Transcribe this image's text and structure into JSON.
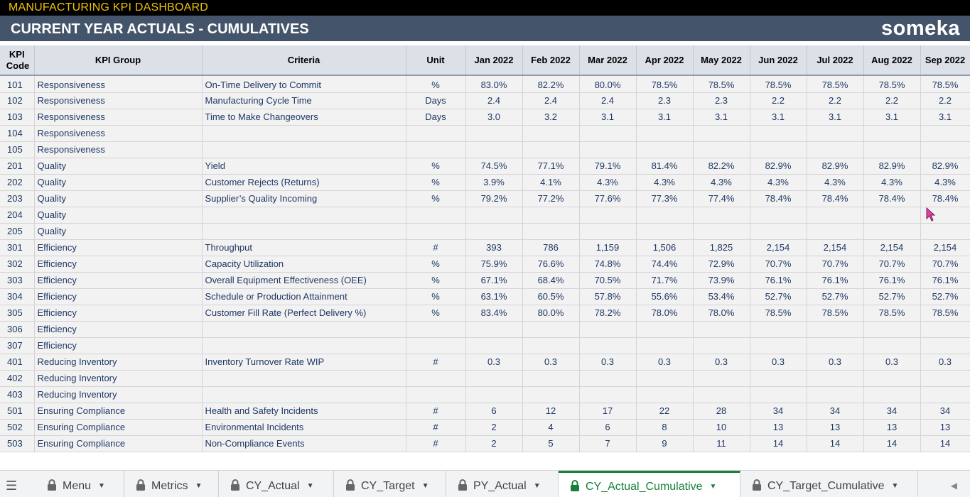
{
  "header": {
    "app_title": "MANUFACTURING KPI DASHBOARD",
    "page_title": "CURRENT YEAR ACTUALS - CUMULATIVES",
    "brand": "someka"
  },
  "table": {
    "columns": {
      "code": "KPI Code",
      "group": "KPI Group",
      "criteria": "Criteria",
      "unit": "Unit",
      "months": [
        "Jan 2022",
        "Feb 2022",
        "Mar 2022",
        "Apr 2022",
        "May 2022",
        "Jun 2022",
        "Jul 2022",
        "Aug 2022",
        "Sep 2022"
      ]
    },
    "rows": [
      {
        "code": "101",
        "group": "Responsiveness",
        "criteria": "On-Time Delivery to Commit",
        "unit": "%",
        "values": [
          "83.0%",
          "82.2%",
          "80.0%",
          "78.5%",
          "78.5%",
          "78.5%",
          "78.5%",
          "78.5%",
          "78.5%"
        ]
      },
      {
        "code": "102",
        "group": "Responsiveness",
        "criteria": "Manufacturing Cycle Time",
        "unit": "Days",
        "values": [
          "2.4",
          "2.4",
          "2.4",
          "2.3",
          "2.3",
          "2.2",
          "2.2",
          "2.2",
          "2.2"
        ]
      },
      {
        "code": "103",
        "group": "Responsiveness",
        "criteria": "Time to Make Changeovers",
        "unit": "Days",
        "values": [
          "3.0",
          "3.2",
          "3.1",
          "3.1",
          "3.1",
          "3.1",
          "3.1",
          "3.1",
          "3.1"
        ]
      },
      {
        "code": "104",
        "group": "Responsiveness",
        "criteria": "",
        "unit": "",
        "values": [
          "",
          "",
          "",
          "",
          "",
          "",
          "",
          "",
          ""
        ]
      },
      {
        "code": "105",
        "group": "Responsiveness",
        "criteria": "",
        "unit": "",
        "values": [
          "",
          "",
          "",
          "",
          "",
          "",
          "",
          "",
          ""
        ]
      },
      {
        "code": "201",
        "group": "Quality",
        "criteria": "Yield",
        "unit": "%",
        "values": [
          "74.5%",
          "77.1%",
          "79.1%",
          "81.4%",
          "82.2%",
          "82.9%",
          "82.9%",
          "82.9%",
          "82.9%"
        ]
      },
      {
        "code": "202",
        "group": "Quality",
        "criteria": "Customer Rejects (Returns)",
        "unit": "%",
        "values": [
          "3.9%",
          "4.1%",
          "4.3%",
          "4.3%",
          "4.3%",
          "4.3%",
          "4.3%",
          "4.3%",
          "4.3%"
        ]
      },
      {
        "code": "203",
        "group": "Quality",
        "criteria": "Supplier’s Quality Incoming",
        "unit": "%",
        "values": [
          "79.2%",
          "77.2%",
          "77.6%",
          "77.3%",
          "77.4%",
          "78.4%",
          "78.4%",
          "78.4%",
          "78.4%"
        ]
      },
      {
        "code": "204",
        "group": "Quality",
        "criteria": "",
        "unit": "",
        "values": [
          "",
          "",
          "",
          "",
          "",
          "",
          "",
          "",
          ""
        ]
      },
      {
        "code": "205",
        "group": "Quality",
        "criteria": "",
        "unit": "",
        "values": [
          "",
          "",
          "",
          "",
          "",
          "",
          "",
          "",
          ""
        ]
      },
      {
        "code": "301",
        "group": "Efficiency",
        "criteria": "Throughput",
        "unit": "#",
        "values": [
          "393",
          "786",
          "1,159",
          "1,506",
          "1,825",
          "2,154",
          "2,154",
          "2,154",
          "2,154"
        ]
      },
      {
        "code": "302",
        "group": "Efficiency",
        "criteria": "Capacity Utilization",
        "unit": "%",
        "values": [
          "75.9%",
          "76.6%",
          "74.8%",
          "74.4%",
          "72.9%",
          "70.7%",
          "70.7%",
          "70.7%",
          "70.7%"
        ]
      },
      {
        "code": "303",
        "group": "Efficiency",
        "criteria": "Overall Equipment Effectiveness (OEE)",
        "unit": "%",
        "values": [
          "67.1%",
          "68.4%",
          "70.5%",
          "71.7%",
          "73.9%",
          "76.1%",
          "76.1%",
          "76.1%",
          "76.1%"
        ]
      },
      {
        "code": "304",
        "group": "Efficiency",
        "criteria": "Schedule or Production Attainment",
        "unit": "%",
        "values": [
          "63.1%",
          "60.5%",
          "57.8%",
          "55.6%",
          "53.4%",
          "52.7%",
          "52.7%",
          "52.7%",
          "52.7%"
        ]
      },
      {
        "code": "305",
        "group": "Efficiency",
        "criteria": "Customer Fill Rate (Perfect Delivery %)",
        "unit": "%",
        "values": [
          "83.4%",
          "80.0%",
          "78.2%",
          "78.0%",
          "78.0%",
          "78.5%",
          "78.5%",
          "78.5%",
          "78.5%"
        ]
      },
      {
        "code": "306",
        "group": "Efficiency",
        "criteria": "",
        "unit": "",
        "values": [
          "",
          "",
          "",
          "",
          "",
          "",
          "",
          "",
          ""
        ]
      },
      {
        "code": "307",
        "group": "Efficiency",
        "criteria": "",
        "unit": "",
        "values": [
          "",
          "",
          "",
          "",
          "",
          "",
          "",
          "",
          ""
        ]
      },
      {
        "code": "401",
        "group": "Reducing Inventory",
        "criteria": "Inventory Turnover Rate WIP",
        "unit": "#",
        "values": [
          "0.3",
          "0.3",
          "0.3",
          "0.3",
          "0.3",
          "0.3",
          "0.3",
          "0.3",
          "0.3"
        ]
      },
      {
        "code": "402",
        "group": "Reducing Inventory",
        "criteria": "",
        "unit": "",
        "values": [
          "",
          "",
          "",
          "",
          "",
          "",
          "",
          "",
          ""
        ]
      },
      {
        "code": "403",
        "group": "Reducing Inventory",
        "criteria": "",
        "unit": "",
        "values": [
          "",
          "",
          "",
          "",
          "",
          "",
          "",
          "",
          ""
        ]
      },
      {
        "code": "501",
        "group": "Ensuring Compliance",
        "criteria": "Health and Safety Incidents",
        "unit": "#",
        "values": [
          "6",
          "12",
          "17",
          "22",
          "28",
          "34",
          "34",
          "34",
          "34"
        ]
      },
      {
        "code": "502",
        "group": "Ensuring Compliance",
        "criteria": "Environmental Incidents",
        "unit": "#",
        "values": [
          "2",
          "4",
          "6",
          "8",
          "10",
          "13",
          "13",
          "13",
          "13"
        ]
      },
      {
        "code": "503",
        "group": "Ensuring Compliance",
        "criteria": "Non-Compliance Events",
        "unit": "#",
        "values": [
          "2",
          "5",
          "7",
          "9",
          "11",
          "14",
          "14",
          "14",
          "14"
        ]
      }
    ]
  },
  "tabs": [
    {
      "label": "Menu",
      "locked": true,
      "active": false
    },
    {
      "label": "Metrics",
      "locked": true,
      "active": false
    },
    {
      "label": "CY_Actual",
      "locked": true,
      "active": false
    },
    {
      "label": "CY_Target",
      "locked": true,
      "active": false
    },
    {
      "label": "PY_Actual",
      "locked": true,
      "active": false
    },
    {
      "label": "CY_Actual_Cumulative",
      "locked": true,
      "active": true
    },
    {
      "label": "CY_Target_Cumulative",
      "locked": true,
      "active": false
    }
  ],
  "colors": {
    "title_bar": "#44546a",
    "top_bar_text": "#f2c200",
    "active_tab": "#188038"
  }
}
